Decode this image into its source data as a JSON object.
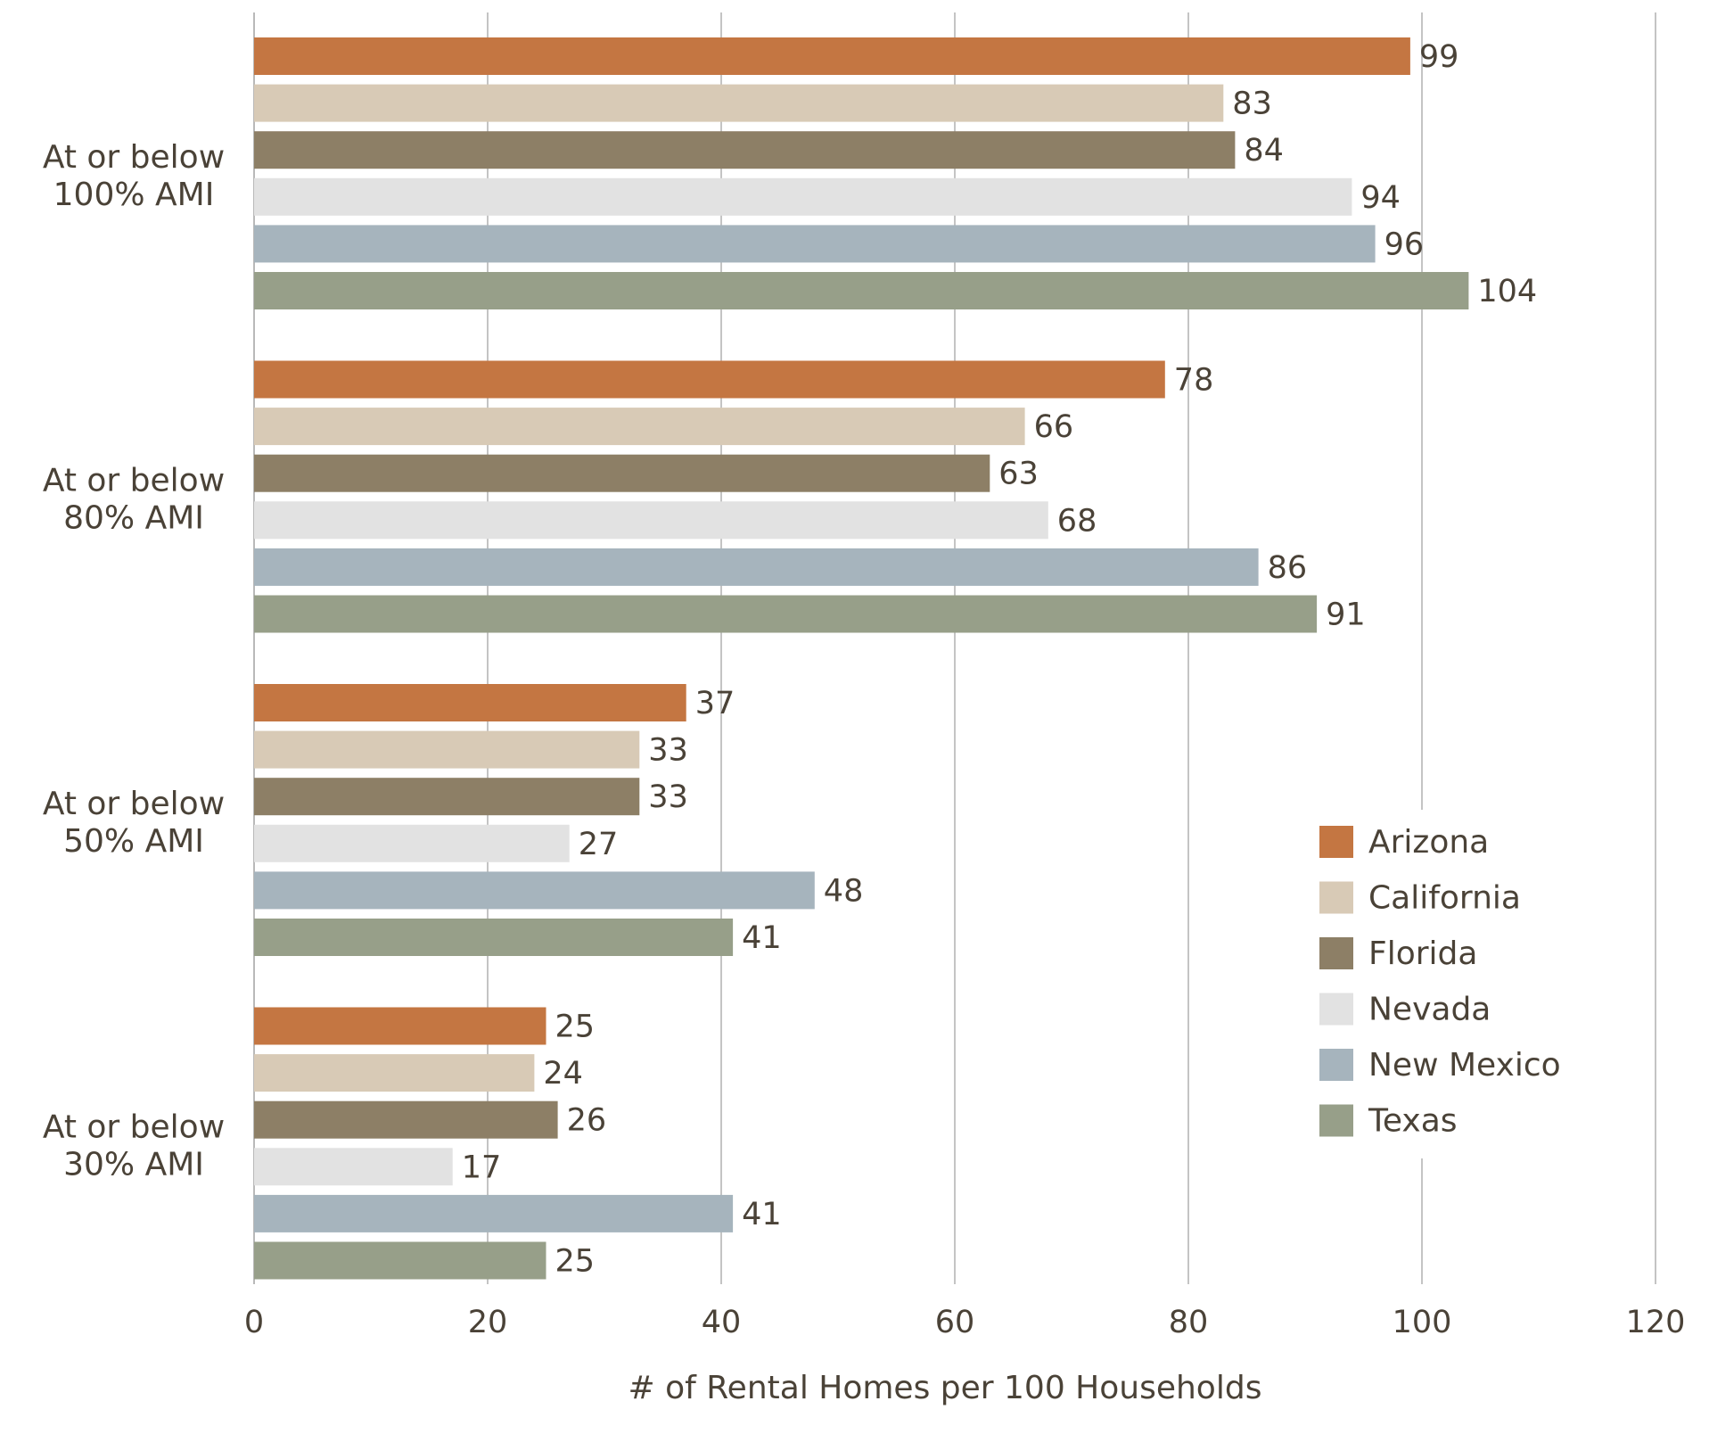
{
  "chart_data": {
    "type": "bar",
    "orientation": "horizontal",
    "title": "",
    "xlabel": "# of Rental Homes per 100 Households",
    "ylabel": "",
    "xlim": [
      0,
      120
    ],
    "xticks": [
      0,
      20,
      40,
      60,
      80,
      100,
      120
    ],
    "grid": true,
    "legend_position": "right",
    "categories": [
      [
        "At or below",
        "100% AMI"
      ],
      [
        "At or below",
        "80% AMI"
      ],
      [
        "At or below",
        "50% AMI"
      ],
      [
        "At or below",
        "30% AMI"
      ]
    ],
    "series": [
      {
        "name": "Arizona",
        "color": "#c47642",
        "values": [
          99,
          78,
          37,
          25
        ]
      },
      {
        "name": "California",
        "color": "#d8cab6",
        "values": [
          83,
          66,
          33,
          24
        ]
      },
      {
        "name": "Florida",
        "color": "#8d7f66",
        "values": [
          84,
          63,
          33,
          26
        ]
      },
      {
        "name": "Nevada",
        "color": "#e2e2e2",
        "values": [
          94,
          68,
          27,
          17
        ]
      },
      {
        "name": "New Mexico",
        "color": "#a6b4bd",
        "values": [
          96,
          86,
          48,
          41
        ]
      },
      {
        "name": "Texas",
        "color": "#979f89",
        "values": [
          104,
          91,
          41,
          25
        ]
      }
    ]
  }
}
